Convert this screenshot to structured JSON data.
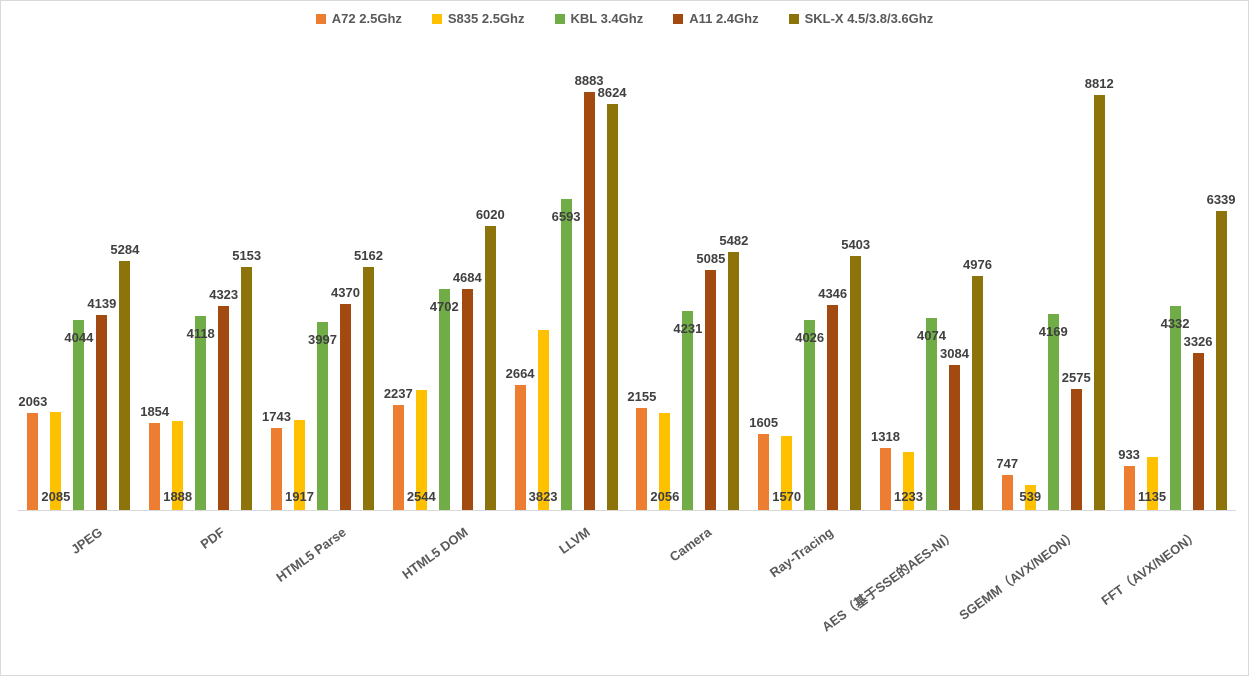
{
  "chart_data": {
    "type": "bar",
    "title": "",
    "xlabel": "",
    "ylabel": "",
    "ylim": [
      0,
      10000
    ],
    "grid": false,
    "legend_position": "top-center",
    "axis_line_color": "#d9d9d9",
    "data_label_color": "#404040",
    "category_label_color": "#595959",
    "categories": [
      "JPEG",
      "PDF",
      "HTML5 Parse",
      "HTML5 DOM",
      "LLVM",
      "Camera",
      "Ray-Tracing",
      "AES（基于SSE的AES-NI）",
      "SGEMM（AVX/NEON）",
      "FFT（AVX/NEON）"
    ],
    "series": [
      {
        "name": "A72 2.5Ghz",
        "color": "#ED7D31",
        "label_position": "above",
        "values": [
          2063,
          1854,
          1743,
          2237,
          2664,
          2155,
          1605,
          1318,
          747,
          933
        ]
      },
      {
        "name": "S835 2.5Ghz",
        "color": "#FFC000",
        "label_position": "base",
        "values": [
          2085,
          1888,
          1917,
          2544,
          3823,
          2056,
          1570,
          1233,
          539,
          1135
        ]
      },
      {
        "name": "KBL 3.4Ghz",
        "color": "#70AD47",
        "label_position": "inside-top",
        "values": [
          4044,
          4118,
          3997,
          4702,
          6593,
          4231,
          4026,
          4074,
          4169,
          4332
        ]
      },
      {
        "name": "A11 2.4Ghz",
        "color": "#A34A10",
        "label_position": "above",
        "values": [
          4139,
          4323,
          4370,
          4684,
          8883,
          5085,
          4346,
          3084,
          2575,
          3326
        ]
      },
      {
        "name": "SKL-X 4.5/3.8/3.6Ghz",
        "color": "#8C730A",
        "label_position": "above",
        "values": [
          5284,
          5153,
          5162,
          6020,
          8624,
          5482,
          5403,
          4976,
          8812,
          6339
        ]
      }
    ]
  }
}
